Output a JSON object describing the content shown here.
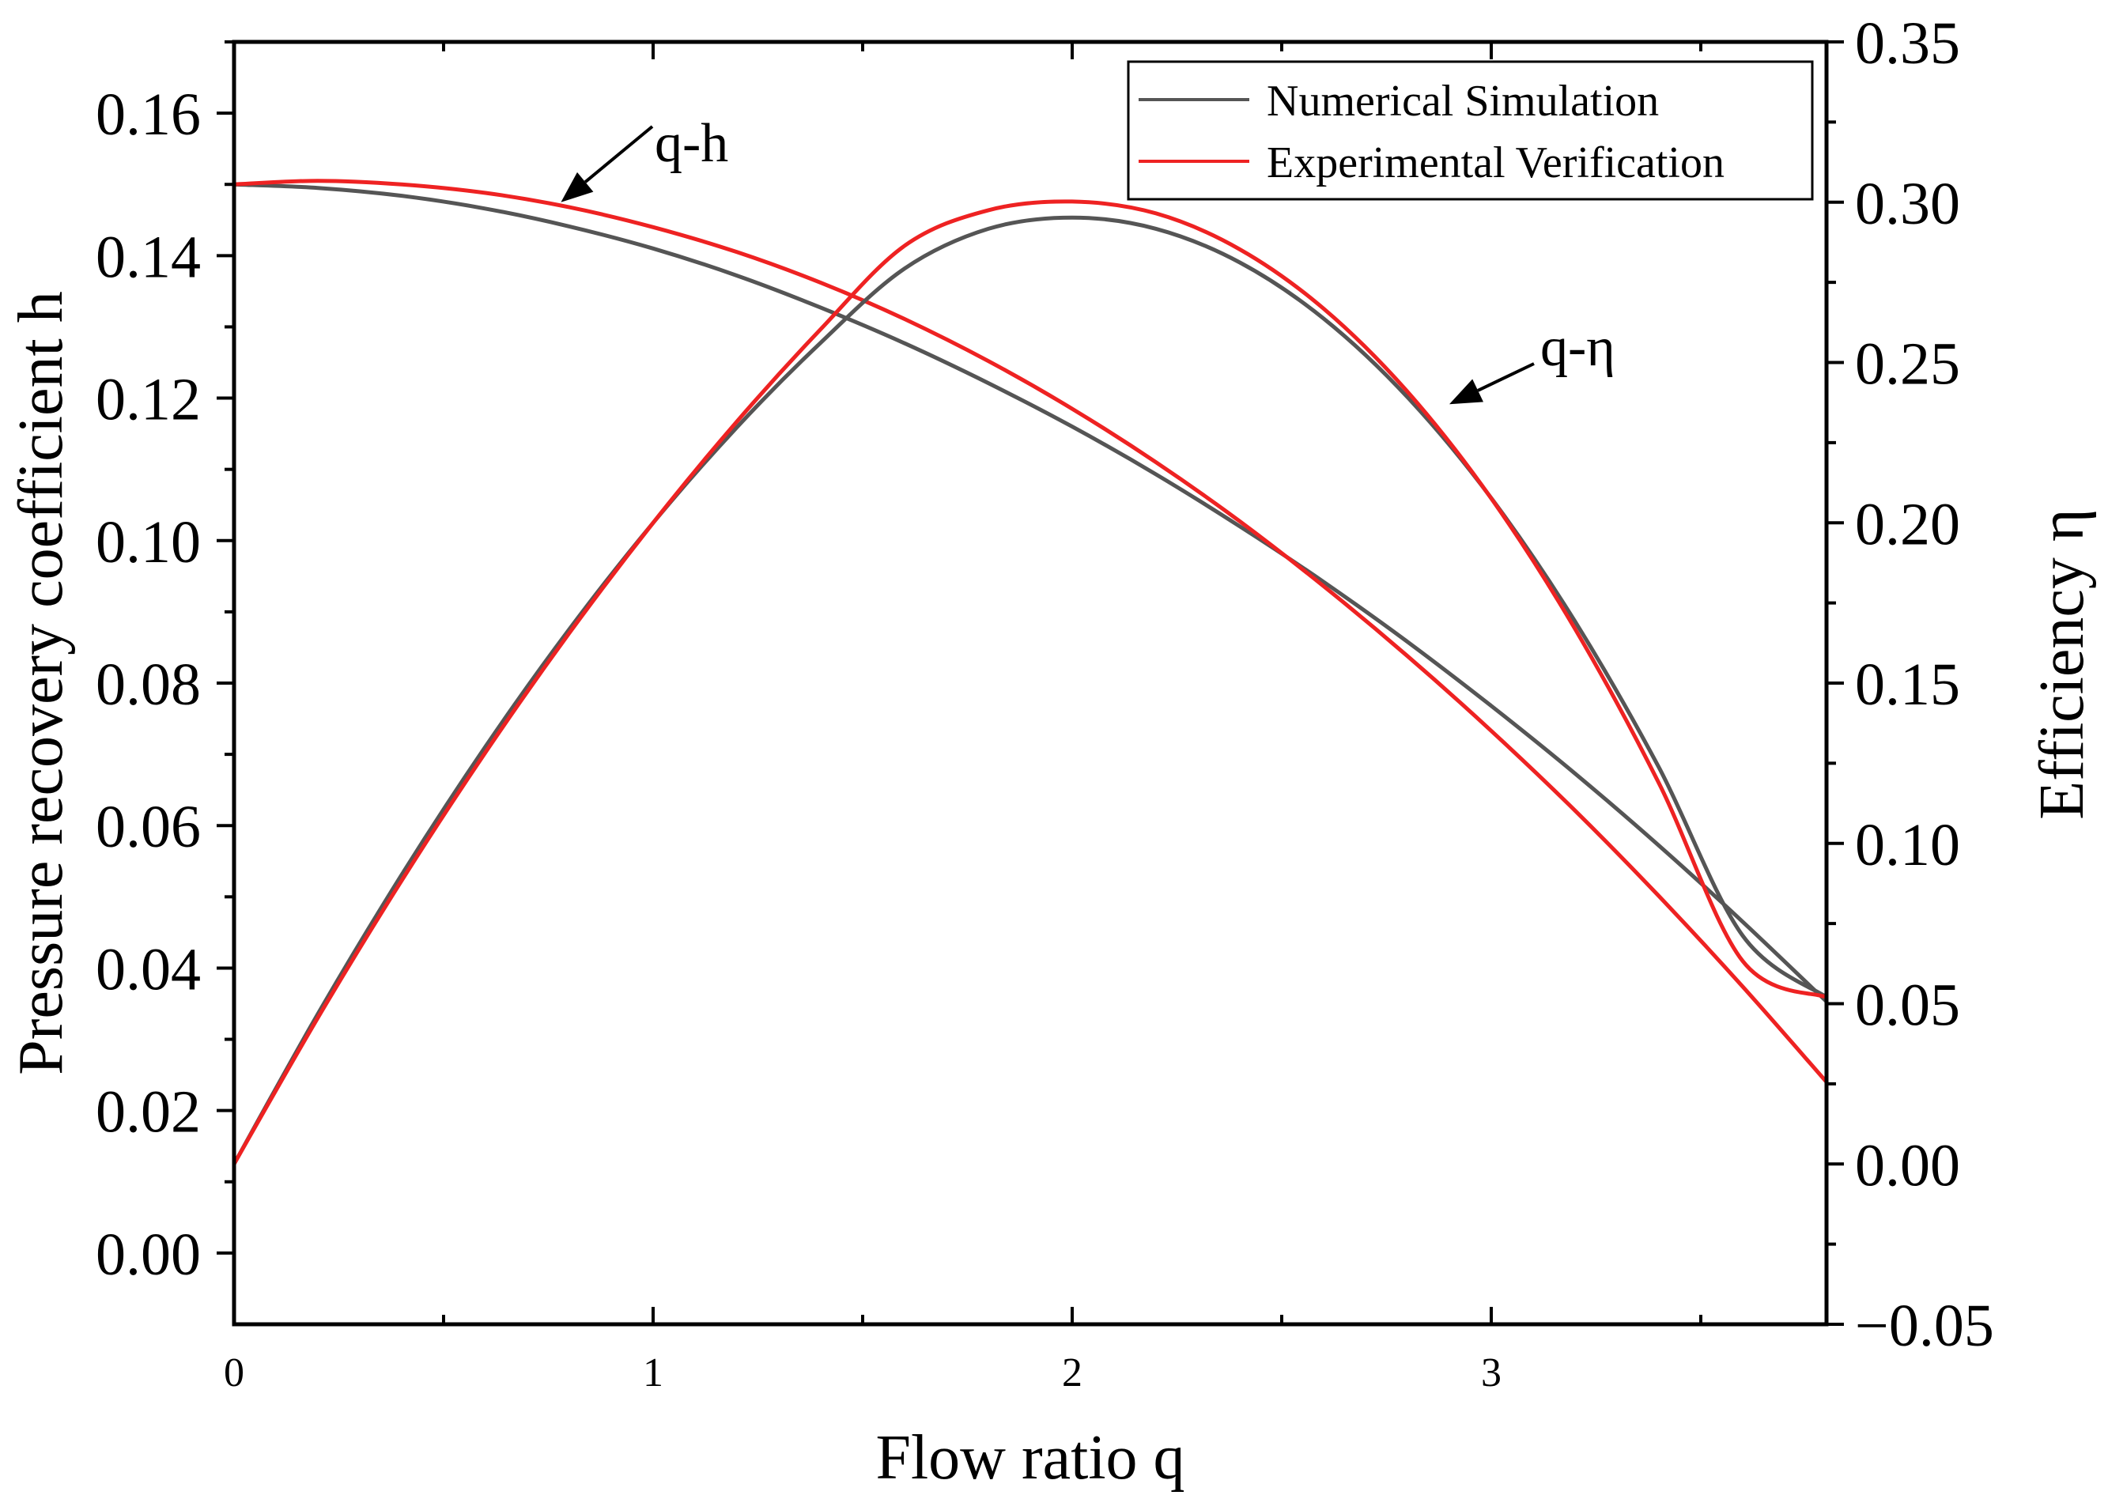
{
  "chart_data": {
    "type": "line",
    "xlabel": "Flow ratio q",
    "ylabel_left": "Pressure recovery coefficient h",
    "ylabel_right": "Efficiency η",
    "xlim": [
      0,
      3.8
    ],
    "ylim_left": [
      -0.01,
      0.17
    ],
    "ylim_right": [
      -0.05,
      0.35
    ],
    "x_ticks": [
      "0",
      "1",
      "2",
      "3"
    ],
    "x_tick_values": [
      0,
      1,
      2,
      3
    ],
    "y_left_ticks": [
      "0.00",
      "0.02",
      "0.04",
      "0.06",
      "0.08",
      "0.10",
      "0.12",
      "0.14",
      "0.16"
    ],
    "y_left_tick_values": [
      0.0,
      0.02,
      0.04,
      0.06,
      0.08,
      0.1,
      0.12,
      0.14,
      0.16
    ],
    "y_right_ticks": [
      "−0.05",
      "0.00",
      "0.05",
      "0.10",
      "0.15",
      "0.20",
      "0.25",
      "0.30",
      "0.35"
    ],
    "y_right_tick_values": [
      -0.05,
      0.0,
      0.05,
      0.1,
      0.15,
      0.2,
      0.25,
      0.3,
      0.35
    ],
    "legend": {
      "position": "top-right",
      "entries": [
        {
          "label": "Numerical Simulation",
          "color": "#555555"
        },
        {
          "label": "Experimental Verification",
          "color": "#ee2222"
        }
      ]
    },
    "annotations": [
      {
        "text": "q-h",
        "arrow_to": {
          "x": 0.78,
          "y_axis": "left",
          "y": 0.1475
        }
      },
      {
        "text": "q-η",
        "arrow_to": {
          "x": 2.9,
          "y_axis": "right",
          "y": 0.237
        }
      }
    ],
    "series": [
      {
        "name": "Numerical Simulation q-h",
        "axis": "left",
        "color": "#555555",
        "x": [
          0,
          0.2,
          0.4,
          0.6,
          0.8,
          1.0,
          1.2,
          1.4,
          1.6,
          1.8,
          2.0,
          2.2,
          2.4,
          2.6,
          2.8,
          3.0,
          3.2,
          3.4,
          3.6,
          3.8
        ],
        "y": [
          0.15,
          0.1495,
          0.1484,
          0.1466,
          0.1441,
          0.141,
          0.1372,
          0.1327,
          0.1277,
          0.1221,
          0.116,
          0.1093,
          0.102,
          0.0942,
          0.0858,
          0.0768,
          0.0673,
          0.0572,
          0.0465,
          0.0353
        ]
      },
      {
        "name": "Experimental Verification q-h",
        "axis": "left",
        "color": "#ee2222",
        "x": [
          0,
          0.2,
          0.4,
          0.6,
          0.8,
          1.0,
          1.2,
          1.4,
          1.6,
          1.8,
          2.0,
          2.2,
          2.4,
          2.6,
          2.8,
          3.0,
          3.2,
          3.4,
          3.6,
          3.8
        ],
        "y": [
          0.15,
          0.1505,
          0.15,
          0.1488,
          0.1468,
          0.144,
          0.1405,
          0.1362,
          0.1311,
          0.1252,
          0.1185,
          0.111,
          0.1027,
          0.0936,
          0.0838,
          0.0733,
          0.0621,
          0.0501,
          0.0374,
          0.024
        ]
      },
      {
        "name": "Numerical Simulation q-η",
        "axis": "right",
        "color": "#555555",
        "x": [
          0,
          0.2,
          0.4,
          0.6,
          0.8,
          1.0,
          1.2,
          1.4,
          1.6,
          1.8,
          2.0,
          2.2,
          2.4,
          2.6,
          2.8,
          3.0,
          3.2,
          3.4,
          3.6,
          3.8
        ],
        "y": [
          0.0,
          0.0468,
          0.0902,
          0.1302,
          0.1668,
          0.2,
          0.2298,
          0.2562,
          0.2793,
          0.2917,
          0.2952,
          0.2917,
          0.2812,
          0.2637,
          0.2392,
          0.2077,
          0.1692,
          0.1237,
          0.0712,
          0.052
        ]
      },
      {
        "name": "Experimental Verification q-η",
        "axis": "right",
        "color": "#ee2222",
        "x": [
          0,
          0.2,
          0.4,
          0.6,
          0.8,
          1.0,
          1.2,
          1.4,
          1.6,
          1.8,
          2.0,
          2.2,
          2.4,
          2.6,
          2.8,
          3.0,
          3.2,
          3.4,
          3.6,
          3.8
        ],
        "y": [
          0.0,
          0.0456,
          0.0884,
          0.1284,
          0.1656,
          0.2,
          0.2316,
          0.2604,
          0.2864,
          0.2975,
          0.3002,
          0.2965,
          0.2853,
          0.2668,
          0.2409,
          0.2076,
          0.1669,
          0.1188,
          0.0633,
          0.052
        ]
      }
    ]
  }
}
